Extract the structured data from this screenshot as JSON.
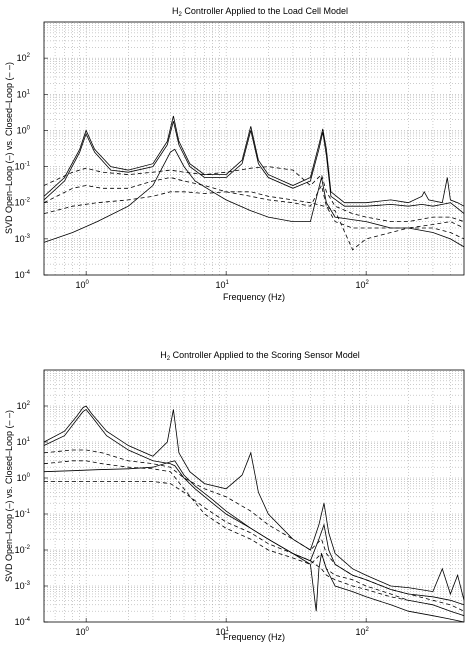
{
  "chart_data": [
    {
      "type": "line",
      "title": {
        "prefix": "H",
        "sub": "2",
        "rest": " Controller Applied to the Load Cell Model"
      },
      "xlabel": "Frequency (Hz)",
      "ylabel": "SVD Open–Loop (–) vs. Closed–Loop (– –)",
      "xscale": "log",
      "yscale": "log",
      "xlim": [
        0.5,
        500
      ],
      "ylim": [
        0.0001,
        1000
      ],
      "grid": true,
      "x_ticks": [
        {
          "base": "10",
          "exp": "0",
          "v": 1
        },
        {
          "base": "10",
          "exp": "1",
          "v": 10
        },
        {
          "base": "10",
          "exp": "2",
          "v": 100
        }
      ],
      "y_ticks": [
        {
          "base": "10",
          "exp": "-4",
          "v": 0.0001
        },
        {
          "base": "10",
          "exp": "-3",
          "v": 0.001
        },
        {
          "base": "10",
          "exp": "-2",
          "v": 0.01
        },
        {
          "base": "10",
          "exp": "-1",
          "v": 0.1
        },
        {
          "base": "10",
          "exp": "0",
          "v": 1
        },
        {
          "base": "10",
          "exp": "1",
          "v": 10
        },
        {
          "base": "10",
          "exp": "2",
          "v": 100
        }
      ],
      "series": [
        {
          "style": "solid",
          "x": [
            0.5,
            0.7,
            0.9,
            1.0,
            1.15,
            1.5,
            2,
            3,
            3.8,
            4.2,
            4.6,
            5.5,
            7,
            10,
            13,
            15,
            17,
            20,
            30,
            40,
            46,
            49,
            52,
            56,
            70,
            100,
            150,
            200,
            250,
            260,
            280,
            350,
            380,
            400,
            450,
            500
          ],
          "y": [
            0.015,
            0.05,
            0.3,
            1.0,
            0.3,
            0.1,
            0.08,
            0.12,
            0.5,
            2.5,
            0.5,
            0.12,
            0.06,
            0.06,
            0.15,
            1.3,
            0.15,
            0.06,
            0.03,
            0.05,
            0.4,
            1.1,
            0.3,
            0.02,
            0.01,
            0.01,
            0.012,
            0.01,
            0.015,
            0.02,
            0.012,
            0.01,
            0.05,
            0.012,
            0.01,
            0.008
          ]
        },
        {
          "style": "solid",
          "x": [
            0.5,
            0.7,
            0.9,
            1.0,
            1.15,
            1.5,
            2,
            3,
            3.8,
            4.2,
            4.6,
            5.5,
            7,
            10,
            13,
            15,
            17,
            20,
            30,
            40,
            46,
            49,
            52,
            56,
            70,
            100,
            150,
            200,
            250,
            300,
            350,
            400,
            450,
            500
          ],
          "y": [
            0.012,
            0.04,
            0.25,
            0.8,
            0.25,
            0.08,
            0.07,
            0.1,
            0.4,
            1.8,
            0.4,
            0.1,
            0.05,
            0.05,
            0.12,
            1.0,
            0.12,
            0.05,
            0.025,
            0.04,
            0.3,
            0.9,
            0.2,
            0.015,
            0.008,
            0.008,
            0.009,
            0.008,
            0.009,
            0.008,
            0.009,
            0.01,
            0.007,
            0.005
          ]
        },
        {
          "style": "solid",
          "x": [
            0.5,
            0.8,
            1.2,
            2,
            3,
            4,
            4.3,
            5,
            6,
            8,
            10,
            15,
            20,
            30,
            40,
            48,
            52,
            60,
            100,
            150,
            200,
            300,
            400,
            500
          ],
          "y": [
            0.0008,
            0.0015,
            0.003,
            0.008,
            0.03,
            0.25,
            0.3,
            0.1,
            0.04,
            0.02,
            0.012,
            0.006,
            0.004,
            0.003,
            0.003,
            0.05,
            0.01,
            0.004,
            0.003,
            0.002,
            0.002,
            0.0015,
            0.001,
            0.0006
          ]
        },
        {
          "style": "dashed",
          "x": [
            0.5,
            0.8,
            1.0,
            1.3,
            2,
            3,
            4,
            5,
            7,
            10,
            15,
            20,
            30,
            40,
            48,
            52,
            60,
            80,
            100,
            150,
            200,
            300,
            400,
            500
          ],
          "y": [
            0.03,
            0.07,
            0.09,
            0.07,
            0.06,
            0.07,
            0.08,
            0.07,
            0.06,
            0.07,
            0.09,
            0.1,
            0.08,
            0.03,
            0.06,
            0.02,
            0.008,
            0.005,
            0.004,
            0.003,
            0.003,
            0.004,
            0.004,
            0.003
          ]
        },
        {
          "style": "dashed",
          "x": [
            0.5,
            0.8,
            1.0,
            1.3,
            2,
            3,
            4,
            5,
            7,
            10,
            15,
            20,
            30,
            40,
            48,
            52,
            60,
            80,
            100,
            150,
            200,
            300,
            400,
            500
          ],
          "y": [
            0.01,
            0.025,
            0.03,
            0.025,
            0.025,
            0.04,
            0.05,
            0.04,
            0.03,
            0.02,
            0.015,
            0.012,
            0.01,
            0.008,
            0.03,
            0.008,
            0.003,
            0.002,
            0.002,
            0.002,
            0.002,
            0.0025,
            0.003,
            0.002
          ]
        },
        {
          "style": "dashed",
          "x": [
            0.5,
            0.8,
            1.2,
            2,
            3,
            4,
            5,
            7,
            10,
            15,
            20,
            30,
            40,
            50,
            60,
            80,
            100,
            150,
            200,
            300,
            400,
            500
          ],
          "y": [
            0.005,
            0.008,
            0.01,
            0.012,
            0.015,
            0.02,
            0.02,
            0.018,
            0.02,
            0.02,
            0.015,
            0.012,
            0.01,
            0.008,
            0.006,
            0.0005,
            0.001,
            0.0015,
            0.002,
            0.002,
            0.0015,
            0.001
          ]
        }
      ]
    },
    {
      "type": "line",
      "title": {
        "prefix": "H",
        "sub": "2",
        "rest": " Controller Applied to the Scoring Sensor Model"
      },
      "xlabel": "Frequency (Hz)",
      "ylabel": "SVD Open–Loop (–) vs. Closed–Loop (– –)",
      "xscale": "log",
      "yscale": "log",
      "xlim": [
        0.5,
        500
      ],
      "ylim": [
        0.0001,
        1000
      ],
      "grid": true,
      "x_ticks": [
        {
          "base": "10",
          "exp": "0",
          "v": 1
        },
        {
          "base": "10",
          "exp": "1",
          "v": 10
        },
        {
          "base": "10",
          "exp": "2",
          "v": 100
        }
      ],
      "y_ticks": [
        {
          "base": "10",
          "exp": "-4",
          "v": 0.0001
        },
        {
          "base": "10",
          "exp": "-3",
          "v": 0.001
        },
        {
          "base": "10",
          "exp": "-2",
          "v": 0.01
        },
        {
          "base": "10",
          "exp": "-1",
          "v": 0.1
        },
        {
          "base": "10",
          "exp": "0",
          "v": 1
        },
        {
          "base": "10",
          "exp": "1",
          "v": 10
        },
        {
          "base": "10",
          "exp": "2",
          "v": 100
        }
      ],
      "series": [
        {
          "style": "solid",
          "x": [
            0.5,
            0.7,
            0.85,
            0.95,
            1.0,
            1.1,
            1.4,
            2,
            3,
            3.8,
            4.2,
            4.6,
            5.5,
            7,
            10,
            13,
            15,
            17,
            20,
            30,
            40,
            46,
            50,
            54,
            60,
            80,
            100,
            150,
            200,
            300,
            350,
            400,
            450,
            500
          ],
          "y": [
            10,
            20,
            50,
            90,
            100,
            60,
            20,
            8,
            4,
            10,
            80,
            5,
            1.5,
            0.7,
            0.5,
            1.2,
            5,
            0.4,
            0.1,
            0.02,
            0.01,
            0.05,
            0.2,
            0.03,
            0.008,
            0.003,
            0.002,
            0.001,
            0.0009,
            0.0007,
            0.003,
            0.0006,
            0.002,
            0.0004
          ]
        },
        {
          "style": "solid",
          "x": [
            0.5,
            0.7,
            0.85,
            0.95,
            1.0,
            1.1,
            1.4,
            2,
            3,
            4,
            4.3,
            5,
            6,
            8,
            10,
            15,
            20,
            30,
            40,
            46,
            50,
            54,
            60,
            80,
            100,
            150,
            200,
            300,
            400,
            500
          ],
          "y": [
            8,
            15,
            40,
            70,
            80,
            50,
            15,
            6,
            3,
            2.5,
            2.2,
            1.0,
            0.5,
            0.2,
            0.1,
            0.04,
            0.02,
            0.008,
            0.005,
            0.02,
            0.05,
            0.01,
            0.004,
            0.002,
            0.0015,
            0.0008,
            0.0006,
            0.0005,
            0.0004,
            0.0003
          ]
        },
        {
          "style": "solid",
          "x": [
            0.5,
            0.8,
            1.2,
            2,
            3,
            4,
            4.3,
            5,
            6,
            8,
            10,
            15,
            20,
            30,
            40,
            44,
            46,
            48,
            52,
            60,
            80,
            100,
            150,
            200,
            300,
            400,
            500
          ],
          "y": [
            1.5,
            1.6,
            1.7,
            1.8,
            2.0,
            2.8,
            3.0,
            1.2,
            0.6,
            0.25,
            0.12,
            0.04,
            0.02,
            0.008,
            0.004,
            0.0002,
            0.003,
            0.008,
            0.003,
            0.001,
            0.0007,
            0.0005,
            0.0003,
            0.0002,
            0.00015,
            0.00012,
            0.0001
          ]
        },
        {
          "style": "dashed",
          "x": [
            0.5,
            0.8,
            1.0,
            1.3,
            2,
            3,
            4,
            5,
            7,
            10,
            15,
            20,
            30,
            40,
            48,
            52,
            60,
            80,
            100,
            150,
            200,
            300,
            400,
            500
          ],
          "y": [
            5,
            6,
            6,
            5,
            3,
            2.5,
            2.0,
            1.0,
            0.5,
            0.3,
            0.12,
            0.05,
            0.02,
            0.01,
            0.02,
            0.008,
            0.004,
            0.002,
            0.0015,
            0.0008,
            0.0006,
            0.0004,
            0.0003,
            0.0002
          ]
        },
        {
          "style": "dashed",
          "x": [
            0.5,
            0.8,
            1.0,
            1.3,
            2,
            3,
            4,
            5,
            7,
            10,
            15,
            20,
            30,
            40,
            48,
            52,
            60,
            80,
            100,
            150,
            200,
            300,
            400,
            500
          ],
          "y": [
            2.5,
            3,
            3,
            2.5,
            2.0,
            1.8,
            1.5,
            0.5,
            0.1,
            0.04,
            0.02,
            0.01,
            0.006,
            0.004,
            0.008,
            0.003,
            0.002,
            0.0015,
            0.001,
            0.0006,
            0.0004,
            0.0003,
            0.0002,
            0.00015
          ]
        },
        {
          "style": "dashed",
          "x": [
            0.5,
            0.8,
            1.2,
            2,
            3,
            4,
            5,
            7,
            10,
            15,
            20,
            30,
            40,
            48,
            52,
            60,
            80,
            100,
            150,
            200,
            300,
            400,
            500
          ],
          "y": [
            0.8,
            0.8,
            0.8,
            0.8,
            0.8,
            0.7,
            0.4,
            0.15,
            0.06,
            0.03,
            0.015,
            0.008,
            0.005,
            0.003,
            0.002,
            0.0015,
            0.001,
            0.0008,
            0.0005,
            0.0004,
            0.0003,
            0.0002,
            0.00015
          ]
        }
      ]
    }
  ]
}
